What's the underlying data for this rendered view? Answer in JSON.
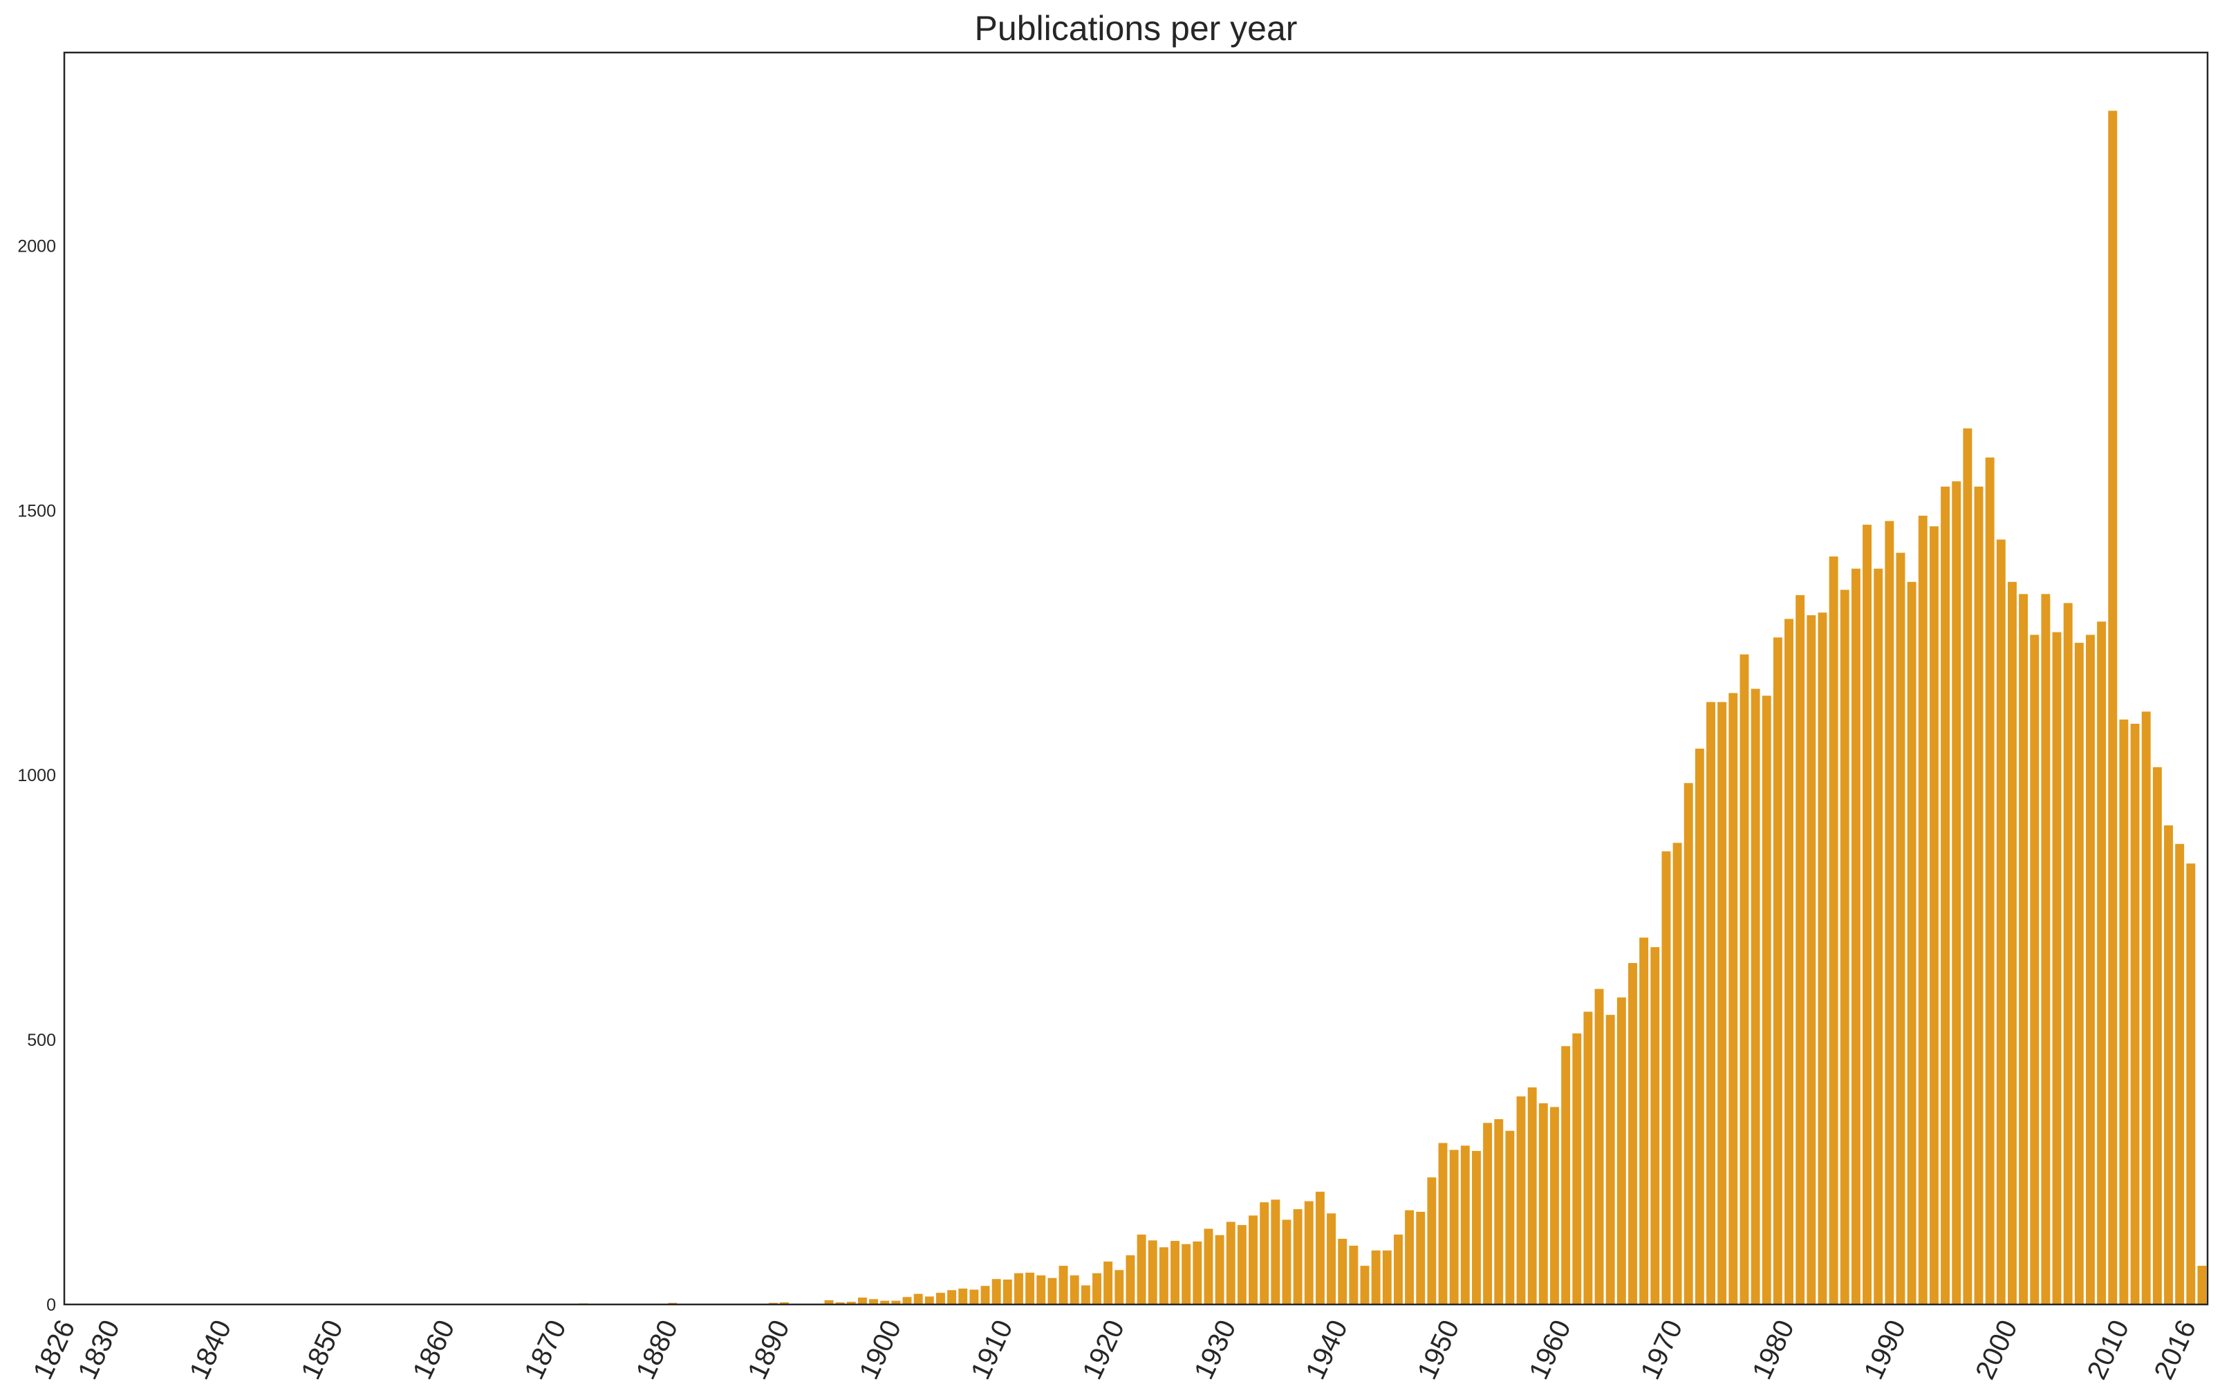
{
  "chart_data": {
    "type": "bar",
    "title": "Publications per year",
    "xlabel": "",
    "ylabel": "",
    "bar_color": "#e19a1f",
    "axis_color": "#262626",
    "grid": false,
    "legend": "none",
    "x_range": [
      1826,
      2018
    ],
    "ylim": [
      0,
      2365
    ],
    "yticks": [
      0,
      500,
      1000,
      1500,
      2000
    ],
    "xticks": [
      1826,
      1830,
      1840,
      1850,
      1860,
      1870,
      1880,
      1890,
      1900,
      1910,
      1920,
      1930,
      1940,
      1950,
      1960,
      1970,
      1980,
      1990,
      2000,
      2010,
      2016
    ],
    "series": [
      {
        "x": [
          1872,
          1880,
          1889,
          1890,
          1894,
          1895,
          1896,
          1897,
          1898,
          1899,
          1900,
          1901,
          1902,
          1903,
          1904,
          1905,
          1906,
          1907,
          1908,
          1909,
          1910,
          1911,
          1912,
          1913,
          1914,
          1915,
          1916,
          1917,
          1918,
          1919,
          1920,
          1921,
          1922,
          1923,
          1924,
          1925,
          1926,
          1927,
          1928,
          1929,
          1930,
          1931,
          1932,
          1933,
          1934,
          1935,
          1936,
          1937,
          1938,
          1939,
          1940,
          1941,
          1942,
          1943,
          1944,
          1945,
          1946,
          1947,
          1948,
          1949,
          1950,
          1951,
          1952,
          1953,
          1954,
          1955,
          1956,
          1957,
          1958,
          1959,
          1960,
          1961,
          1962,
          1963,
          1964,
          1965,
          1966,
          1967,
          1968,
          1969,
          1970,
          1971,
          1972,
          1973,
          1974,
          1975,
          1976,
          1977,
          1978,
          1979,
          1980,
          1981,
          1982,
          1983,
          1984,
          1985,
          1986,
          1987,
          1988,
          1989,
          1990,
          1991,
          1992,
          1993,
          1994,
          1995,
          1996,
          1997,
          1998,
          1999,
          2000,
          2001,
          2002,
          2003,
          2004,
          2005,
          2006,
          2007,
          2008,
          2009,
          2010,
          2011,
          2012,
          2013,
          2014,
          2015,
          2016,
          2017
        ],
        "values": [
          2,
          3,
          3,
          4,
          8,
          4,
          5,
          13,
          10,
          7,
          7,
          14,
          20,
          15,
          22,
          27,
          30,
          28,
          35,
          48,
          47,
          59,
          60,
          55,
          50,
          73,
          55,
          36,
          59,
          81,
          65,
          93,
          132,
          121,
          108,
          120,
          114,
          119,
          143,
          131,
          156,
          150,
          168,
          193,
          198,
          160,
          180,
          195,
          213,
          172,
          124,
          111,
          73,
          102,
          102,
          132,
          178,
          175,
          240,
          305,
          292,
          300,
          290,
          343,
          350,
          328,
          393,
          410,
          380,
          373,
          488,
          512,
          553,
          596,
          547,
          580,
          645,
          693,
          675,
          856,
          872,
          985,
          1050,
          1138,
          1138,
          1155,
          1228,
          1163,
          1150,
          1260,
          1295,
          1340,
          1302,
          1307,
          1413,
          1350,
          1390,
          1473,
          1390,
          1480,
          1420,
          1365,
          1490,
          1470,
          1545,
          1555,
          1655,
          1545,
          1600,
          1445,
          1365,
          1342,
          1265,
          1342,
          1270,
          1325,
          1250,
          1265,
          1290,
          2255,
          1105,
          1097,
          1120,
          1015,
          905,
          870,
          833,
          73
        ]
      }
    ]
  }
}
